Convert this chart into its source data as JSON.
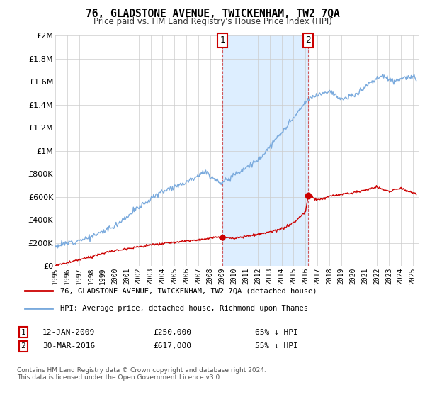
{
  "title": "76, GLADSTONE AVENUE, TWICKENHAM, TW2 7QA",
  "subtitle": "Price paid vs. HM Land Registry's House Price Index (HPI)",
  "legend_line1": "76, GLADSTONE AVENUE, TWICKENHAM, TW2 7QA (detached house)",
  "legend_line2": "HPI: Average price, detached house, Richmond upon Thames",
  "transaction1_date": "12-JAN-2009",
  "transaction1_price": "£250,000",
  "transaction1_hpi": "65% ↓ HPI",
  "transaction2_date": "30-MAR-2016",
  "transaction2_price": "£617,000",
  "transaction2_hpi": "55% ↓ HPI",
  "footnote": "Contains HM Land Registry data © Crown copyright and database right 2024.\nThis data is licensed under the Open Government Licence v3.0.",
  "hpi_color": "#7aaadd",
  "property_color": "#cc0000",
  "shade_color": "#ddeeff",
  "ylim": [
    0,
    2000000
  ],
  "xlim_start": 1995.0,
  "xlim_end": 2025.5,
  "transaction1_year": 2009.04,
  "transaction2_year": 2016.25,
  "transaction1_price_val": 250000,
  "transaction2_price_val": 617000
}
